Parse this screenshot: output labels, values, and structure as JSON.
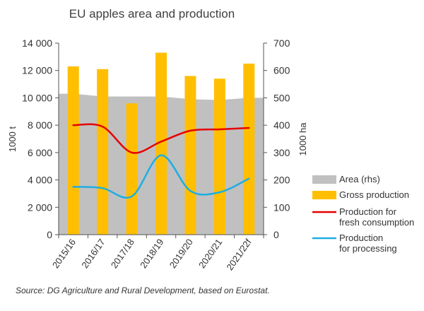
{
  "chart_data": {
    "type": "bar+line+area",
    "title": "EU apples area and production",
    "categories": [
      "2015/16",
      "2016/17",
      "2017/18",
      "2018/19",
      "2019/20",
      "2020/21",
      "2021/22f"
    ],
    "ylabel_left": "1000 t",
    "ylabel_right": "1000 ha",
    "ylim_left": [
      0,
      14000
    ],
    "ylim_right": [
      0,
      700
    ],
    "yticks_left": [
      "0",
      "2 000",
      "4 000",
      "6 000",
      "8 000",
      "10 000",
      "12 000",
      "14 000"
    ],
    "yticks_right": [
      "0",
      "100",
      "200",
      "300",
      "400",
      "500",
      "600",
      "700"
    ],
    "grid": false,
    "legend_position": "right",
    "series": [
      {
        "name": "Area (rhs)",
        "type": "area",
        "axis": "right",
        "color": "#c0c0c0",
        "values": [
          515,
          505,
          505,
          505,
          495,
          492,
          500
        ]
      },
      {
        "name": "Gross production",
        "type": "bar",
        "axis": "left",
        "color": "#ffbf00",
        "values": [
          12300,
          12100,
          9600,
          13300,
          11600,
          11400,
          12500
        ]
      },
      {
        "name": "Production for fresh consumption",
        "type": "line",
        "axis": "left",
        "color": "#e60000",
        "values": [
          8000,
          7900,
          6000,
          6800,
          7600,
          7700,
          7800
        ]
      },
      {
        "name": "Production for processing",
        "type": "line",
        "axis": "left",
        "color": "#1eaee0",
        "values": [
          3500,
          3400,
          2800,
          5800,
          3200,
          3100,
          4100
        ]
      }
    ],
    "legend": [
      {
        "label": "Area (rhs)",
        "kind": "area",
        "color": "#c0c0c0"
      },
      {
        "label": "Gross production",
        "kind": "bar",
        "color": "#ffbf00"
      },
      {
        "label": "Production for fresh consumption",
        "lines": [
          "Production for",
          "fresh consumption"
        ],
        "kind": "line",
        "color": "#e60000"
      },
      {
        "label": "Production for processing",
        "lines": [
          "Production",
          "for processing"
        ],
        "kind": "line",
        "color": "#1eaee0"
      }
    ]
  },
  "source": "Source: DG Agriculture and Rural Development, based on Eurostat."
}
